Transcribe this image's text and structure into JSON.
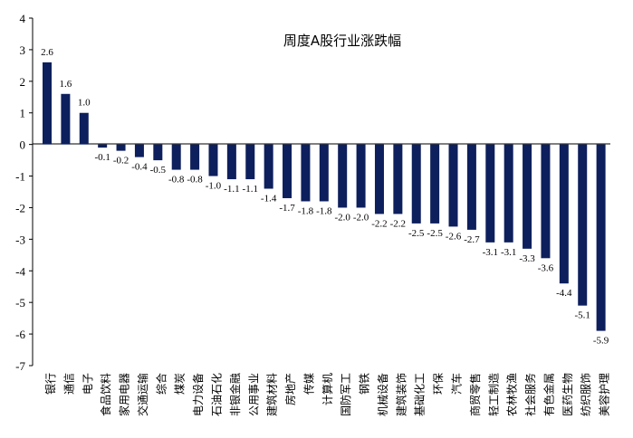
{
  "chart_data": {
    "type": "bar",
    "title": "周度A股行业涨跌幅",
    "xlabel": "",
    "ylabel": "",
    "ylim": [
      -7,
      4
    ],
    "yticks": [
      4,
      3,
      2,
      1,
      0,
      -1,
      -2,
      -3,
      -4,
      -5,
      -6,
      -7
    ],
    "grid": false,
    "bar_color": "#0d1f5c",
    "categories": [
      "银行",
      "通信",
      "电子",
      "食品饮料",
      "家用电器",
      "交通运输",
      "综合",
      "煤炭",
      "电力设备",
      "石油石化",
      "非银金融",
      "公用事业",
      "建筑材料",
      "房地产",
      "传媒",
      "计算机",
      "国防军工",
      "钢铁",
      "机械设备",
      "建筑装饰",
      "基础化工",
      "环保",
      "汽车",
      "商贸零售",
      "轻工制造",
      "农林牧渔",
      "社会服务",
      "有色金属",
      "医药生物",
      "纺织服饰",
      "美容护理"
    ],
    "values": [
      2.6,
      1.6,
      1.0,
      -0.1,
      -0.2,
      -0.4,
      -0.5,
      -0.8,
      -0.8,
      -1.0,
      -1.1,
      -1.1,
      -1.4,
      -1.7,
      -1.8,
      -1.8,
      -2.0,
      -2.0,
      -2.2,
      -2.2,
      -2.5,
      -2.5,
      -2.6,
      -2.7,
      -3.1,
      -3.1,
      -3.3,
      -3.6,
      -4.4,
      -5.1,
      -5.9
    ]
  }
}
